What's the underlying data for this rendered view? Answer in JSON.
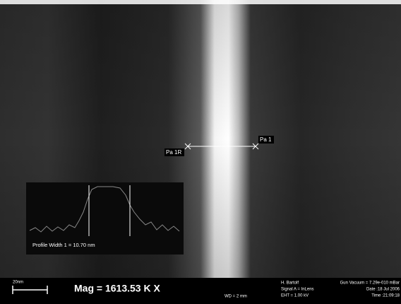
{
  "image": {
    "markers": {
      "left": "Pa 1R",
      "right": "Pa 1"
    },
    "profile_inset": {
      "caption": "Profile Width 1 = 10.70 nm"
    },
    "info_bar": {
      "scale_bar": "20nm",
      "magnification": "Mag = 1613.53 K X",
      "working_distance": "WD =   2 mm",
      "operator": "H. Bartolf",
      "signal": "Signal A = InLens",
      "eht": "EHT = 1.00 kV",
      "gun_vacuum": "Gun Vacuum = 7.29e-010 mBar",
      "date": "Date :18 Jul 2006",
      "time": "Time :21:09:18"
    }
  }
}
